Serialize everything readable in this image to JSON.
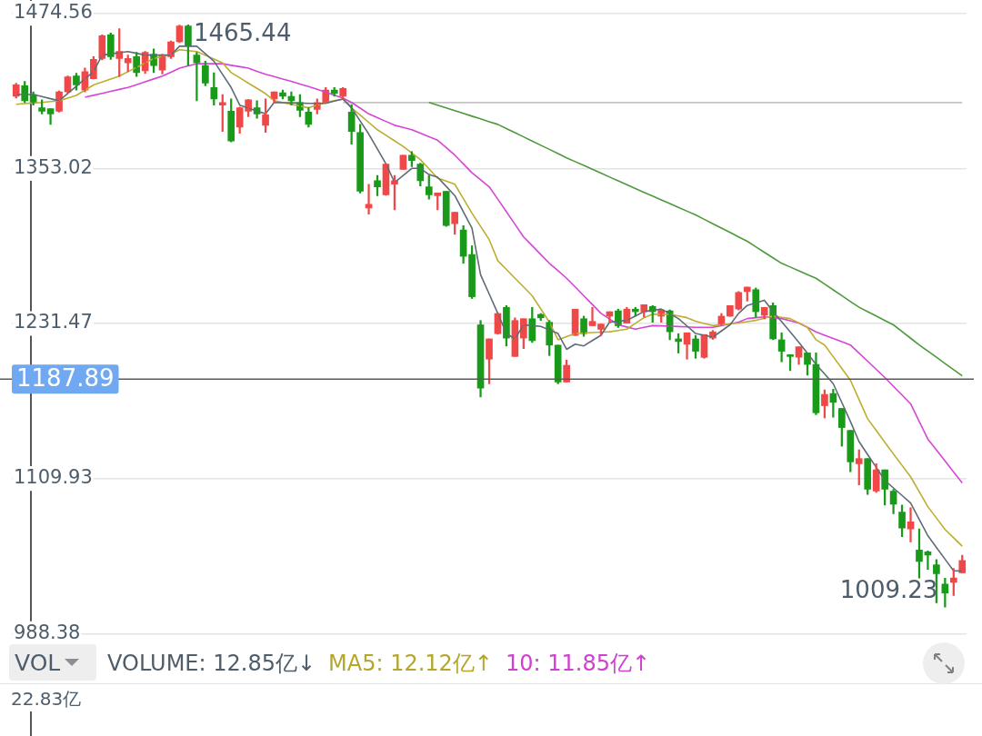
{
  "chart_data": {
    "type": "candlestick",
    "categories": [
      null,
      null,
      null,
      null,
      null,
      null,
      null,
      null,
      null,
      null,
      null,
      null,
      null,
      null,
      null,
      null,
      null,
      null,
      null,
      null,
      null,
      null,
      null,
      null,
      null,
      null,
      null,
      null,
      null,
      null,
      null,
      null,
      null,
      null,
      null,
      null,
      null,
      null,
      null,
      null,
      null,
      null,
      null,
      null,
      null,
      null,
      null,
      null,
      null,
      null,
      null,
      null,
      null,
      null,
      null,
      null,
      null,
      null,
      null,
      null,
      null,
      null,
      null,
      null,
      null,
      null,
      null,
      null,
      null,
      null,
      null,
      null,
      null,
      null,
      null,
      null,
      null,
      null,
      null,
      null,
      null,
      null,
      null,
      null,
      null,
      null,
      null,
      null,
      null,
      null,
      null,
      null,
      null,
      null,
      null,
      null,
      null,
      null,
      null,
      null,
      null,
      null,
      null,
      null,
      null,
      null,
      null,
      null,
      null,
      null,
      null
    ],
    "ohlc": [
      [
        1409.5,
        1419.8,
        1408.1,
        1418.5
      ],
      [
        1417.8,
        1421.2,
        1404.6,
        1406.0
      ],
      [
        1410.9,
        1413.0,
        1402.6,
        1404.6
      ],
      [
        1400.5,
        1406.7,
        1395.7,
        1397.8
      ],
      [
        1399.8,
        1399.8,
        1387.4,
        1395.7
      ],
      [
        1397.8,
        1413.7,
        1397.0,
        1413.0
      ],
      [
        1413.0,
        1425.4,
        1412.0,
        1424.7
      ],
      [
        1425.4,
        1427.5,
        1414.4,
        1418.5
      ],
      [
        1414.3,
        1431.6,
        1413.0,
        1428.8
      ],
      [
        1423.3,
        1440.5,
        1423.0,
        1438.4
      ],
      [
        1439.1,
        1457.7,
        1438.0,
        1457.0
      ],
      [
        1457.7,
        1459.0,
        1438.4,
        1440.5
      ],
      [
        1439.1,
        1462.5,
        1425.0,
        1444.6
      ],
      [
        1435.7,
        1441.8,
        1428.8,
        1439.1
      ],
      [
        1440.5,
        1444.0,
        1425.0,
        1428.0
      ],
      [
        1429.5,
        1444.6,
        1427.4,
        1444.0
      ],
      [
        1442.5,
        1446.7,
        1428.0,
        1433.6
      ],
      [
        1430.0,
        1442.5,
        1427.0,
        1441.8
      ],
      [
        1440.5,
        1452.9,
        1439.0,
        1452.2
      ],
      [
        1452.2,
        1465.3,
        1451.5,
        1464.6
      ],
      [
        1464.6,
        1465.44,
        1433.6,
        1448.8
      ],
      [
        1441.8,
        1443.9,
        1406.0,
        1435.7
      ],
      [
        1433.6,
        1437.0,
        1417.8,
        1419.8
      ],
      [
        1416.4,
        1428.0,
        1402.6,
        1407.4
      ],
      [
        1402.6,
        1410.9,
        1381.9,
        1404.6
      ],
      [
        1397.8,
        1407.4,
        1373.7,
        1374.4
      ],
      [
        1385.4,
        1401.0,
        1380.6,
        1400.5
      ],
      [
        1397.8,
        1407.0,
        1393.6,
        1406.7
      ],
      [
        1400.5,
        1406.0,
        1392.3,
        1395.7
      ],
      [
        1386.8,
        1407.4,
        1381.2,
        1395.0
      ],
      [
        1407.4,
        1413.0,
        1404.6,
        1413.0
      ],
      [
        1412.3,
        1414.4,
        1407.4,
        1409.5
      ],
      [
        1409.5,
        1413.0,
        1402.6,
        1406.0
      ],
      [
        1404.6,
        1410.9,
        1393.6,
        1398.5
      ],
      [
        1397.1,
        1400.5,
        1385.4,
        1387.4
      ],
      [
        1399.2,
        1407.4,
        1395.7,
        1404.6
      ],
      [
        1404.6,
        1416.4,
        1404.0,
        1414.4
      ],
      [
        1414.4,
        1416.4,
        1409.5,
        1411.6
      ],
      [
        1409.5,
        1416.4,
        1407.4,
        1415.7
      ],
      [
        1397.1,
        1403.0,
        1372.0,
        1382.0
      ],
      [
        1381.2,
        1387.5,
        1333.7,
        1335.1
      ],
      [
        1322.0,
        1340.6,
        1317.2,
        1324.8
      ],
      [
        1343.4,
        1347.5,
        1331.6,
        1338.5
      ],
      [
        1332.3,
        1356.4,
        1332.0,
        1356.4
      ],
      [
        1340.6,
        1347.5,
        1320.6,
        1343.4
      ],
      [
        1352.3,
        1363.4,
        1352.0,
        1363.4
      ],
      [
        1363.4,
        1366.1,
        1354.4,
        1359.2
      ],
      [
        1356.4,
        1357.1,
        1339.2,
        1343.4
      ],
      [
        1338.5,
        1347.5,
        1328.9,
        1332.3
      ],
      [
        1331.6,
        1333.7,
        1320.6,
        1333.7
      ],
      [
        1335.1,
        1335.1,
        1307.5,
        1308.2
      ],
      [
        1309.6,
        1318.6,
        1301.3,
        1318.6
      ],
      [
        1304.8,
        1308.2,
        1278.6,
        1284.1
      ],
      [
        1285.5,
        1292.4,
        1251.0,
        1252.4
      ],
      [
        1230.4,
        1233.8,
        1173.9,
        1180.8
      ],
      [
        1203.5,
        1219.4,
        1184.2,
        1219.4
      ],
      [
        1223.5,
        1239.3,
        1223.0,
        1239.3
      ],
      [
        1244.1,
        1245.5,
        1213.8,
        1220.0
      ],
      [
        1205.6,
        1235.9,
        1205.6,
        1233.8
      ],
      [
        1220.0,
        1235.2,
        1211.8,
        1235.2
      ],
      [
        1235.2,
        1244.1,
        1216.6,
        1218.0
      ],
      [
        1238.6,
        1239.3,
        1233.8,
        1235.9
      ],
      [
        1232.4,
        1233.8,
        1206.3,
        1214.5
      ],
      [
        1214.5,
        1214.5,
        1184.2,
        1185.6
      ],
      [
        1185.6,
        1202.8,
        1185.6,
        1198.7
      ],
      [
        1222.1,
        1242.7,
        1222.0,
        1242.7
      ],
      [
        1235.2,
        1237.2,
        1221.4,
        1223.5
      ],
      [
        1229.7,
        1244.1,
        1229.7,
        1233.1
      ],
      [
        1226.9,
        1231.0,
        1222.0,
        1231.0
      ],
      [
        1237.2,
        1240.7,
        1231.7,
        1240.7
      ],
      [
        1241.4,
        1242.7,
        1228.3,
        1229.7
      ],
      [
        1231.7,
        1244.1,
        1231.7,
        1242.7
      ],
      [
        1242.7,
        1244.1,
        1237.2,
        1240.7
      ],
      [
        1240.7,
        1246.2,
        1236.5,
        1246.2
      ],
      [
        1244.8,
        1245.5,
        1232.4,
        1240.7
      ],
      [
        1237.2,
        1242.1,
        1232.4,
        1242.1
      ],
      [
        1241.4,
        1242.1,
        1218.7,
        1225.0
      ],
      [
        1219.4,
        1223.5,
        1208.3,
        1217.3
      ],
      [
        1215.2,
        1224.2,
        1203.5,
        1224.2
      ],
      [
        1219.4,
        1222.1,
        1204.2,
        1209.7
      ],
      [
        1204.9,
        1222.8,
        1204.2,
        1222.8
      ],
      [
        1220.0,
        1226.0,
        1219.0,
        1224.9
      ],
      [
        1230.4,
        1239.3,
        1230.0,
        1237.2
      ],
      [
        1237.2,
        1245.5,
        1237.0,
        1245.5
      ],
      [
        1242.8,
        1256.5,
        1242.0,
        1255.8
      ],
      [
        1256.5,
        1260.0,
        1249.0,
        1260.0
      ],
      [
        1258.0,
        1259.3,
        1236.5,
        1240.7
      ],
      [
        1237.9,
        1244.1,
        1235.0,
        1244.1
      ],
      [
        1245.5,
        1247.6,
        1218.7,
        1219.4
      ],
      [
        1218.7,
        1224.2,
        1201.4,
        1209.7
      ],
      [
        1207.0,
        1207.0,
        1194.5,
        1205.6
      ],
      [
        1205.0,
        1213.2,
        1199.4,
        1213.2
      ],
      [
        1208.4,
        1208.4,
        1191.0,
        1199.4
      ],
      [
        1199.4,
        1208.4,
        1160.0,
        1161.5
      ],
      [
        1167.0,
        1179.4,
        1157.4,
        1175.9
      ],
      [
        1176.6,
        1180.0,
        1158.0,
        1169.7
      ],
      [
        1164.9,
        1164.9,
        1135.3,
        1149.9
      ],
      [
        1147.7,
        1147.7,
        1115.3,
        1123.0
      ],
      [
        1121.5,
        1132.5,
        1105.0,
        1125.6
      ],
      [
        1125.6,
        1125.6,
        1097.4,
        1101.5
      ],
      [
        1100.1,
        1121.5,
        1099.0,
        1116.7
      ],
      [
        1116.7,
        1116.7,
        1089.1,
        1101.5
      ],
      [
        1100.1,
        1101.5,
        1082.3,
        1089.8
      ],
      [
        1083.6,
        1089.1,
        1064.3,
        1071.2
      ],
      [
        1070.5,
        1087.0,
        1060.2,
        1076.0
      ],
      [
        1054.0,
        1070.5,
        1032.0,
        1045.0
      ],
      [
        1052.6,
        1053.3,
        1038.8,
        1050.0
      ],
      [
        1042.3,
        1046.4,
        1012.6,
        1035.4
      ],
      [
        1027.2,
        1031.9,
        1009.23,
        1020.3
      ],
      [
        1028.6,
        1039.5,
        1018.2,
        1032.0
      ],
      [
        1036.1,
        1049.9,
        1036.0,
        1045.7
      ]
    ],
    "colors": [
      "#f04848",
      "#1a9a1a",
      "#1a9a1a",
      "#1a9a1a",
      "#1a9a1a",
      "#f04848",
      "#f04848",
      "#1a9a1a",
      "#f04848",
      "#f04848",
      "#f04848",
      "#1a9a1a",
      "#f04848",
      "#f04848",
      "#1a9a1a",
      "#f04848",
      "#1a9a1a",
      "#f04848",
      "#f04848",
      "#f04848",
      "#1a9a1a",
      "#1a9a1a",
      "#1a9a1a",
      "#1a9a1a",
      "#f04848",
      "#1a9a1a",
      "#f04848",
      "#f04848",
      "#1a9a1a",
      "#f04848",
      "#f04848",
      "#1a9a1a",
      "#1a9a1a",
      "#1a9a1a",
      "#1a9a1a",
      "#f04848",
      "#f04848",
      "#1a9a1a",
      "#f04848",
      "#1a9a1a",
      "#1a9a1a",
      "#f04848",
      "#1a9a1a",
      "#f04848",
      "#f04848",
      "#f04848",
      "#1a9a1a",
      "#1a9a1a",
      "#1a9a1a",
      "#f04848",
      "#1a9a1a",
      "#f04848",
      "#1a9a1a",
      "#1a9a1a",
      "#1a9a1a",
      "#f04848",
      "#f04848",
      "#1a9a1a",
      "#f04848",
      "#f04848",
      "#1a9a1a",
      "#1a9a1a",
      "#1a9a1a",
      "#1a9a1a",
      "#f04848",
      "#f04848",
      "#1a9a1a",
      "#f04848",
      "#f04848",
      "#f04848",
      "#1a9a1a",
      "#f04848",
      "#1a9a1a",
      "#f04848",
      "#1a9a1a",
      "#f04848",
      "#1a9a1a",
      "#1a9a1a",
      "#f04848",
      "#1a9a1a",
      "#f04848",
      "#f04848",
      "#f04848",
      "#f04848",
      "#f04848",
      "#f04848",
      "#1a9a1a",
      "#f04848",
      "#1a9a1a",
      "#1a9a1a",
      "#1a9a1a",
      "#f04848",
      "#1a9a1a",
      "#1a9a1a",
      "#f04848",
      "#1a9a1a",
      "#1a9a1a",
      "#1a9a1a",
      "#f04848",
      "#1a9a1a",
      "#f04848",
      "#1a9a1a",
      "#1a9a1a",
      "#1a9a1a",
      "#f04848",
      "#1a9a1a",
      "#1a9a1a",
      "#1a9a1a",
      "#1a9a1a",
      "#f04848",
      "#f04848"
    ],
    "series": [
      {
        "type": "line",
        "color": "#5f6b76",
        "values": [
          1410.9,
          1410.9,
          1410.9,
          1409.3,
          1407.6,
          1406.0,
          1411.7,
          1417.4,
          1423.1,
          1428.8,
          1441.8,
          1442.7,
          1443.7,
          1444.6,
          1443.2,
          1441.8,
          1441.8,
          1441.8,
          1441.8,
          1448.7,
          1448.7,
          1448.7,
          1442.9,
          1437.0,
          1426.7,
          1416.4,
          1402.6,
          1400.3,
          1398.0,
          1395.7,
          1404.7,
          1404.5,
          1404.4,
          1404.2,
          1404.0,
          1404.0,
          1404.0,
          1405.7,
          1407.4,
          1400.5,
          1390.2,
          1379.9,
          1368.2,
          1356.5,
          1342.0,
          1347.5,
          1353.0,
          1353.0,
          1348.2,
          1346.1,
          1338.9,
          1331.7,
          1319.0,
          1306.2,
          1269.7,
          1254.6,
          1239.4,
          1223.6,
          1219.4,
          1230.4,
          1229.8,
          1229.1,
          1226.4,
          1223.6,
          1211.2,
          1215.3,
          1213.9,
          1218.1,
          1222.2,
          1232.5,
          1233.2,
          1233.9,
          1237.4,
          1240.8,
          1241.8,
          1242.8,
          1239.1,
          1235.3,
          1229.5,
          1223.6,
          1222.2,
          1220.8,
          1225.6,
          1230.4,
          1239.4,
          1245.6,
          1247.7,
          1249.7,
          1240.8,
          1232.9,
          1224.9,
          1216.7,
          1208.1,
          1199.4,
          1191.9,
          1184.3,
          1169.5,
          1154.7,
          1138.9,
          1128.8,
          1118.7,
          1108.6,
          1102.6,
          1096.7,
          1090.7,
          1078.0,
          1065.2,
          1056.0,
          1046.8,
          1037.6,
          1037.6
        ]
      },
      {
        "type": "line",
        "color": "#bcae2e",
        "values": [
          1403.3,
          1403.8,
          1404.2,
          1404.7,
          1405.4,
          1406.0,
          1408.1,
          1410.2,
          1414.3,
          1418.4,
          1420.7,
          1423.0,
          1425.3,
          1428.8,
          1432.2,
          1435.7,
          1439.1,
          1440.8,
          1442.5,
          1446.0,
          1445.3,
          1444.6,
          1441.6,
          1438.6,
          1435.6,
          1428.1,
          1424.0,
          1419.8,
          1415.7,
          1411.6,
          1406.0,
          1404.6,
          1403.3,
          1401.9,
          1400.5,
          1402.6,
          1404.7,
          1406.1,
          1407.4,
          1400.5,
          1394.8,
          1389.0,
          1383.3,
          1378.9,
          1374.6,
          1370.2,
          1365.1,
          1359.9,
          1352.7,
          1345.4,
          1343.0,
          1340.6,
          1329.3,
          1317.9,
          1307.6,
          1297.2,
          1280.7,
          1273.8,
          1266.9,
          1260.1,
          1253.2,
          1242.9,
          1232.5,
          1218.7,
          1221.2,
          1223.6,
          1224.0,
          1224.3,
          1224.7,
          1225.0,
          1226.0,
          1227.0,
          1231.5,
          1236.0,
          1238.7,
          1238.7,
          1238.7,
          1237.4,
          1236.0,
          1233.2,
          1231.5,
          1229.8,
          1230.5,
          1231.1,
          1231.8,
          1232.9,
          1233.9,
          1235.6,
          1237.3,
          1236.3,
          1235.3,
          1231.9,
          1228.4,
          1218.7,
          1214.6,
          1205.4,
          1196.2,
          1187.0,
          1171.9,
          1156.8,
          1147.6,
          1138.4,
          1129.2,
          1120.3,
          1111.3,
          1099.6,
          1087.9,
          1079.0,
          1070.0,
          1063.5,
          1056.9
        ]
      },
      {
        "type": "line",
        "color": "#d645d6",
        "values": [
          null,
          null,
          null,
          null,
          null,
          null,
          null,
          null,
          1408.8,
          1410.3,
          1411.8,
          1413.4,
          1414.9,
          1416.4,
          1418.6,
          1420.9,
          1423.1,
          1425.3,
          1428.4,
          1431.5,
          1433.3,
          1435.0,
          1435.0,
          1435.0,
          1435.0,
          1433.8,
          1432.7,
          1431.5,
          1429.1,
          1426.7,
          1424.9,
          1423.0,
          1421.2,
          1419.1,
          1417.1,
          1415.0,
          1412.7,
          1410.4,
          1408.1,
          1404.7,
          1400.2,
          1395.7,
          1392.7,
          1389.8,
          1386.8,
          1385.1,
          1383.3,
          1380.6,
          1377.8,
          1375.1,
          1369.3,
          1363.4,
          1356.5,
          1349.6,
          1344.1,
          1338.6,
          1328.9,
          1319.0,
          1309.2,
          1299.3,
          1292.4,
          1285.5,
          1278.6,
          1272.8,
          1266.9,
          1260.1,
          1253.2,
          1246.3,
          1239.4,
          1234.9,
          1230.4,
          1228.7,
          1227.0,
          1228.4,
          1229.8,
          1229.6,
          1229.3,
          1229.1,
          1228.8,
          1228.4,
          1228.4,
          1228.4,
          1229.8,
          1231.1,
          1232.5,
          1235.3,
          1236.0,
          1236.6,
          1236.0,
          1235.3,
          1233.6,
          1231.8,
          1228.4,
          1224.9,
          1222.3,
          1219.7,
          1217.2,
          1214.6,
          1208.2,
          1201.9,
          1195.5,
          1189.1,
          1182.2,
          1175.4,
          1168.5,
          1154.7,
          1140.9,
          1132.3,
          1123.7,
          1115.1,
          1106.5
        ]
      },
      {
        "type": "line",
        "color": "#4c9a3c",
        "values": [
          null,
          null,
          null,
          null,
          null,
          null,
          null,
          null,
          null,
          null,
          null,
          null,
          null,
          null,
          null,
          null,
          null,
          null,
          null,
          null,
          null,
          null,
          null,
          null,
          null,
          null,
          null,
          null,
          null,
          null,
          null,
          null,
          null,
          null,
          null,
          null,
          null,
          null,
          null,
          null,
          null,
          null,
          null,
          null,
          null,
          null,
          null,
          null,
          1404.7,
          1402.6,
          1400.4,
          1398.2,
          1396.1,
          1393.9,
          1391.8,
          1389.6,
          1387.5,
          1384.2,
          1381.0,
          1377.7,
          1374.4,
          1371.1,
          1367.9,
          1364.6,
          1361.3,
          1358.3,
          1355.3,
          1352.3,
          1349.3,
          1346.2,
          1343.2,
          1340.2,
          1337.2,
          1334.2,
          1331.3,
          1328.3,
          1325.4,
          1322.4,
          1319.5,
          1316.5,
          1313.1,
          1309.6,
          1306.2,
          1302.8,
          1299.3,
          1295.9,
          1291.6,
          1287.2,
          1282.9,
          1278.6,
          1275.7,
          1272.8,
          1269.8,
          1266.9,
          1262.4,
          1257.8,
          1253.3,
          1248.7,
          1244.2,
          1240.7,
          1237.3,
          1233.8,
          1230.4,
          1225.1,
          1219.9,
          1214.6,
          1209.8,
          1205.0,
          1200.1,
          1195.3,
          1190.5
        ]
      },
      {
        "type": "line",
        "color": "#c4c4c4",
        "values": [
          null,
          null,
          null,
          null,
          null,
          null,
          null,
          null,
          null,
          null,
          null,
          null,
          null,
          null,
          null,
          null,
          null,
          null,
          null,
          null,
          null,
          null,
          null,
          null,
          null,
          null,
          null,
          null,
          null,
          null,
          null,
          null,
          null,
          null,
          null,
          null,
          null,
          null,
          1404.6,
          1404.6,
          1404.6,
          1404.6,
          1404.6,
          1404.6,
          1404.6,
          1404.6,
          1404.6,
          1404.6,
          1404.6,
          1404.6,
          1404.6,
          1404.6,
          1404.6,
          1404.6,
          1404.6,
          1404.6,
          1404.6,
          1404.6,
          1404.6,
          1404.6,
          1404.6,
          1404.6,
          1404.6,
          1404.6,
          1404.6,
          1404.6,
          1404.6,
          1404.6,
          1404.6,
          1404.6,
          1404.6,
          1404.6,
          1404.6,
          1404.6,
          1404.6,
          1404.6,
          1404.6,
          1404.6,
          1404.6,
          1404.6,
          1404.6,
          1404.6,
          1404.6,
          1404.6,
          1404.6,
          1404.6,
          1404.6,
          1404.6,
          1404.6,
          1404.6,
          1404.6,
          1404.6,
          1404.6,
          1404.6,
          1404.6,
          1404.6,
          1404.6,
          1404.6,
          1404.6,
          1404.6,
          1404.6,
          1404.6,
          1404.6,
          1404.6,
          1404.6,
          1404.6,
          1404.6,
          1404.6,
          1404.6,
          1404.6,
          1404.6
        ]
      }
    ],
    "ylim": [
      988.38,
      1474.56
    ],
    "yticks": [
      988.38,
      1109.93,
      1231.47,
      1353.02,
      1474.56
    ],
    "grid": "y",
    "tick_labels": "y",
    "marker": "none",
    "ref_lines": [
      {
        "axis": "y",
        "value": 1187.89,
        "label": "1187.89",
        "color": "#5a5a5a"
      }
    ],
    "annotations": [
      "1465.44",
      "1009.23",
      "VOL",
      "VOLUME: 12.85亿↓",
      "MA5: 12.12亿↑",
      "10: 11.85亿↑",
      "22.83亿"
    ]
  }
}
